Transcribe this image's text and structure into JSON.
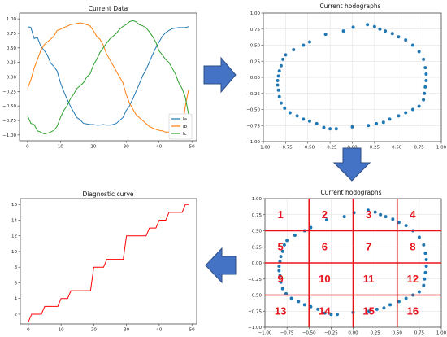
{
  "arrow_color": "#4472c4",
  "colors": {
    "ia": "#1f77b4",
    "ib": "#ff7f0e",
    "ic": "#2ca02c",
    "diag": "#ff0000",
    "grid_red": "#e8141c"
  },
  "chart_data": [
    {
      "id": "current_data",
      "type": "line",
      "title": "Current Data",
      "xlim": [
        -2.45,
        51.45
      ],
      "ylim": [
        -1.1,
        1.1
      ],
      "xticks": [
        0,
        10,
        20,
        30,
        40,
        50
      ],
      "yticks": [
        -1.0,
        -0.75,
        -0.5,
        -0.25,
        0.0,
        0.25,
        0.5,
        0.75,
        1.0
      ],
      "xtick_labels": [
        "0",
        "10",
        "20",
        "30",
        "40",
        "50"
      ],
      "ytick_labels": [
        "−1.00",
        "−0.75",
        "−0.50",
        "−0.25",
        "0.00",
        "0.25",
        "0.50",
        "0.75",
        "1.00"
      ],
      "legend": "lower right",
      "series": [
        {
          "name": "Ia",
          "values": [
            0.866,
            0.85,
            0.66,
            0.68,
            0.53,
            0.46,
            0.38,
            0.24,
            0.18,
            0.1,
            -0.1,
            -0.25,
            -0.38,
            -0.5,
            -0.6,
            -0.7,
            -0.74,
            -0.8,
            -0.81,
            -0.82,
            -0.82,
            -0.83,
            -0.83,
            -0.82,
            -0.83,
            -0.83,
            -0.82,
            -0.8,
            -0.75,
            -0.7,
            -0.58,
            -0.5,
            -0.38,
            -0.25,
            -0.12,
            0.02,
            0.12,
            0.25,
            0.38,
            0.5,
            0.6,
            0.7,
            0.76,
            0.8,
            0.83,
            0.84,
            0.85,
            0.85,
            0.85,
            0.866
          ]
        },
        {
          "name": "Ib",
          "values": [
            -0.2,
            -0.05,
            0.15,
            0.3,
            0.45,
            0.55,
            0.6,
            0.65,
            0.7,
            0.8,
            0.82,
            0.85,
            0.87,
            0.9,
            0.91,
            0.92,
            0.93,
            0.92,
            0.9,
            0.88,
            0.8,
            0.7,
            0.65,
            0.55,
            0.4,
            0.3,
            0.2,
            0.1,
            0.0,
            -0.1,
            -0.3,
            -0.45,
            -0.55,
            -0.65,
            -0.7,
            -0.75,
            -0.8,
            -0.85,
            -0.88,
            -0.9,
            -0.92,
            -0.93,
            -0.95,
            -0.95,
            -0.97,
            -0.97,
            -0.95,
            -0.92,
            -0.5,
            -0.22
          ]
        },
        {
          "name": "Ic",
          "values": [
            -0.67,
            -0.8,
            -0.82,
            -0.93,
            -0.95,
            -0.98,
            -0.97,
            -0.95,
            -0.92,
            -0.85,
            -0.7,
            -0.58,
            -0.5,
            -0.38,
            -0.3,
            -0.2,
            -0.15,
            -0.1,
            0.0,
            0.05,
            0.2,
            0.3,
            0.42,
            0.5,
            0.58,
            0.65,
            0.7,
            0.75,
            0.82,
            0.87,
            0.9,
            0.95,
            0.97,
            0.95,
            0.9,
            0.88,
            0.85,
            0.78,
            0.7,
            0.6,
            0.45,
            0.38,
            0.3,
            0.25,
            0.15,
            0.05,
            -0.1,
            -0.2,
            -0.35,
            -0.65
          ]
        }
      ]
    },
    {
      "id": "hodograph_top",
      "type": "scatter",
      "title": "Current hodographs",
      "xlim": [
        -1.0,
        1.0
      ],
      "ylim": [
        -1.0,
        1.0
      ],
      "grid": true,
      "xticks": [
        -1.0,
        -0.75,
        -0.5,
        -0.25,
        0.0,
        0.25,
        0.5,
        0.75,
        1.0
      ],
      "yticks": [
        -1.0,
        -0.75,
        -0.5,
        -0.25,
        0.0,
        0.25,
        0.5,
        0.75,
        1.0
      ],
      "xtick_labels": [
        "−1.00",
        "−0.75",
        "−0.50",
        "−0.25",
        "0.00",
        "0.25",
        "0.50",
        "0.75",
        "1.00"
      ],
      "ytick_labels": [
        "−1.00",
        "−0.75",
        "−0.50",
        "−0.25",
        "0.00",
        "0.25",
        "0.50",
        "0.75",
        "1.00"
      ],
      "points": [
        [
          0.01,
          0.78
        ],
        [
          0.17,
          0.82
        ],
        [
          0.25,
          0.79
        ],
        [
          0.31,
          0.75
        ],
        [
          0.37,
          0.72
        ],
        [
          0.45,
          0.68
        ],
        [
          0.52,
          0.63
        ],
        [
          0.6,
          0.58
        ],
        [
          0.68,
          0.5
        ],
        [
          0.75,
          0.4
        ],
        [
          0.8,
          0.28
        ],
        [
          0.82,
          0.15
        ],
        [
          0.83,
          0.05
        ],
        [
          0.83,
          -0.05
        ],
        [
          0.82,
          -0.15
        ],
        [
          0.81,
          -0.25
        ],
        [
          0.8,
          -0.35
        ],
        [
          0.75,
          -0.45
        ],
        [
          0.68,
          -0.5
        ],
        [
          0.6,
          -0.55
        ],
        [
          0.52,
          -0.6
        ],
        [
          0.42,
          -0.65
        ],
        [
          0.35,
          -0.7
        ],
        [
          0.27,
          -0.72
        ],
        [
          0.18,
          -0.75
        ],
        [
          0.0,
          -0.77
        ],
        [
          -0.18,
          -0.8
        ],
        [
          -0.25,
          -0.8
        ],
        [
          -0.32,
          -0.78
        ],
        [
          -0.4,
          -0.72
        ],
        [
          -0.48,
          -0.68
        ],
        [
          -0.55,
          -0.65
        ],
        [
          -0.62,
          -0.6
        ],
        [
          -0.7,
          -0.55
        ],
        [
          -0.76,
          -0.48
        ],
        [
          -0.8,
          -0.4
        ],
        [
          -0.82,
          -0.3
        ],
        [
          -0.83,
          -0.2
        ],
        [
          -0.84,
          -0.12
        ],
        [
          -0.84,
          -0.05
        ],
        [
          -0.83,
          0.02
        ],
        [
          -0.82,
          0.1
        ],
        [
          -0.8,
          0.18
        ],
        [
          -0.78,
          0.28
        ],
        [
          -0.75,
          0.35
        ],
        [
          -0.66,
          0.43
        ],
        [
          -0.55,
          0.5
        ],
        [
          -0.48,
          0.55
        ],
        [
          -0.3,
          0.67
        ],
        [
          -0.1,
          0.72
        ]
      ]
    },
    {
      "id": "diagnostic_curve",
      "type": "line",
      "title": "Diagnostic curve",
      "xlim": [
        -2.45,
        51.45
      ],
      "ylim": [
        0.75,
        16.75
      ],
      "xticks": [
        0,
        10,
        20,
        30,
        40,
        50
      ],
      "yticks": [
        2,
        4,
        6,
        8,
        10,
        12,
        14,
        16
      ],
      "xtick_labels": [
        "0",
        "10",
        "20",
        "30",
        "40",
        "50"
      ],
      "ytick_labels": [
        "2",
        "4",
        "6",
        "8",
        "10",
        "12",
        "14",
        "16"
      ],
      "values": [
        1,
        2,
        2,
        2,
        2,
        3,
        3,
        3,
        3,
        3,
        4,
        4,
        4,
        5,
        5,
        5,
        5,
        5,
        5,
        5,
        8,
        8,
        8,
        8,
        9,
        9,
        9,
        9,
        9,
        9,
        12,
        12,
        12,
        12,
        12,
        12,
        12,
        13,
        13,
        13,
        14,
        14,
        14,
        15,
        15,
        15,
        15,
        15,
        16,
        16
      ]
    },
    {
      "id": "hodograph_grid",
      "type": "scatter",
      "title": "Current hodographs",
      "xlim": [
        -1.0,
        1.0
      ],
      "ylim": [
        -1.0,
        1.0
      ],
      "grid": true,
      "xticks": [
        -1.0,
        -0.75,
        -0.5,
        -0.25,
        0.0,
        0.25,
        0.5,
        0.75,
        1.0
      ],
      "yticks": [
        -1.0,
        -0.75,
        -0.5,
        -0.25,
        0.0,
        0.25,
        0.5,
        0.75,
        1.0
      ],
      "xtick_labels": [
        "−1.00",
        "−0.75",
        "−0.50",
        "−0.25",
        "0.00",
        "0.25",
        "0.50",
        "0.75",
        "1.00"
      ],
      "ytick_labels": [
        "−1.00",
        "−0.75",
        "−0.50",
        "−0.25",
        "0.00",
        "0.25",
        "0.50",
        "0.75",
        "1.00"
      ],
      "red_lines_x": [
        -0.5,
        0.0,
        0.5
      ],
      "red_lines_y": [
        0.5,
        0.0,
        -0.5
      ],
      "regions": [
        {
          "label": "1",
          "x": -0.75,
          "y": 0.75
        },
        {
          "label": "2",
          "x": -0.25,
          "y": 0.75
        },
        {
          "label": "3",
          "x": 0.25,
          "y": 0.75
        },
        {
          "label": "4",
          "x": 0.75,
          "y": 0.75
        },
        {
          "label": "5",
          "x": -0.75,
          "y": 0.25
        },
        {
          "label": "6",
          "x": -0.25,
          "y": 0.25
        },
        {
          "label": "7",
          "x": 0.25,
          "y": 0.25
        },
        {
          "label": "8",
          "x": 0.75,
          "y": 0.25
        },
        {
          "label": "9",
          "x": -0.75,
          "y": -0.25
        },
        {
          "label": "10",
          "x": -0.25,
          "y": -0.25
        },
        {
          "label": "11",
          "x": 0.25,
          "y": -0.25
        },
        {
          "label": "12",
          "x": 0.75,
          "y": -0.25
        },
        {
          "label": "13",
          "x": -0.75,
          "y": -0.75
        },
        {
          "label": "14",
          "x": -0.25,
          "y": -0.75
        },
        {
          "label": "15",
          "x": 0.25,
          "y": -0.75
        },
        {
          "label": "16",
          "x": 0.75,
          "y": -0.75
        }
      ],
      "points": [
        [
          0.01,
          0.78
        ],
        [
          0.17,
          0.82
        ],
        [
          0.25,
          0.79
        ],
        [
          0.31,
          0.75
        ],
        [
          0.37,
          0.72
        ],
        [
          0.45,
          0.68
        ],
        [
          0.52,
          0.63
        ],
        [
          0.6,
          0.58
        ],
        [
          0.68,
          0.5
        ],
        [
          0.75,
          0.4
        ],
        [
          0.8,
          0.28
        ],
        [
          0.82,
          0.15
        ],
        [
          0.83,
          0.05
        ],
        [
          0.83,
          -0.05
        ],
        [
          0.82,
          -0.15
        ],
        [
          0.81,
          -0.25
        ],
        [
          0.8,
          -0.35
        ],
        [
          0.75,
          -0.45
        ],
        [
          0.68,
          -0.5
        ],
        [
          0.6,
          -0.55
        ],
        [
          0.52,
          -0.6
        ],
        [
          0.42,
          -0.65
        ],
        [
          0.35,
          -0.7
        ],
        [
          0.27,
          -0.72
        ],
        [
          0.18,
          -0.75
        ],
        [
          0.0,
          -0.77
        ],
        [
          -0.18,
          -0.8
        ],
        [
          -0.25,
          -0.8
        ],
        [
          -0.32,
          -0.78
        ],
        [
          -0.4,
          -0.72
        ],
        [
          -0.48,
          -0.68
        ],
        [
          -0.55,
          -0.65
        ],
        [
          -0.62,
          -0.6
        ],
        [
          -0.7,
          -0.55
        ],
        [
          -0.76,
          -0.48
        ],
        [
          -0.8,
          -0.4
        ],
        [
          -0.82,
          -0.3
        ],
        [
          -0.83,
          -0.2
        ],
        [
          -0.84,
          -0.12
        ],
        [
          -0.84,
          -0.05
        ],
        [
          -0.83,
          0.02
        ],
        [
          -0.82,
          0.1
        ],
        [
          -0.8,
          0.18
        ],
        [
          -0.78,
          0.28
        ],
        [
          -0.75,
          0.35
        ],
        [
          -0.66,
          0.43
        ],
        [
          -0.55,
          0.5
        ],
        [
          -0.48,
          0.55
        ],
        [
          -0.3,
          0.67
        ],
        [
          -0.1,
          0.72
        ]
      ]
    }
  ]
}
